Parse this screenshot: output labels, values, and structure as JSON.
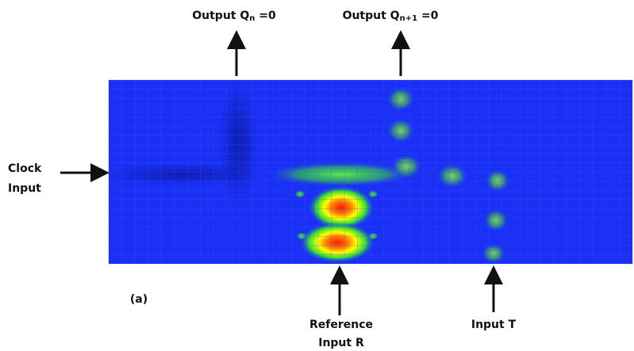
{
  "labels": {
    "output_qn": {
      "text": "Output Q",
      "sub": "n",
      "suffix": " =0"
    },
    "output_qn1": {
      "text": "Output Q",
      "sub": "n+1",
      "suffix": " =0"
    },
    "clock_input": [
      "Clock",
      "Input"
    ],
    "reference_input": [
      "Reference",
      "Input R"
    ],
    "input_t": "Input T",
    "panel": "(a)"
  }
}
